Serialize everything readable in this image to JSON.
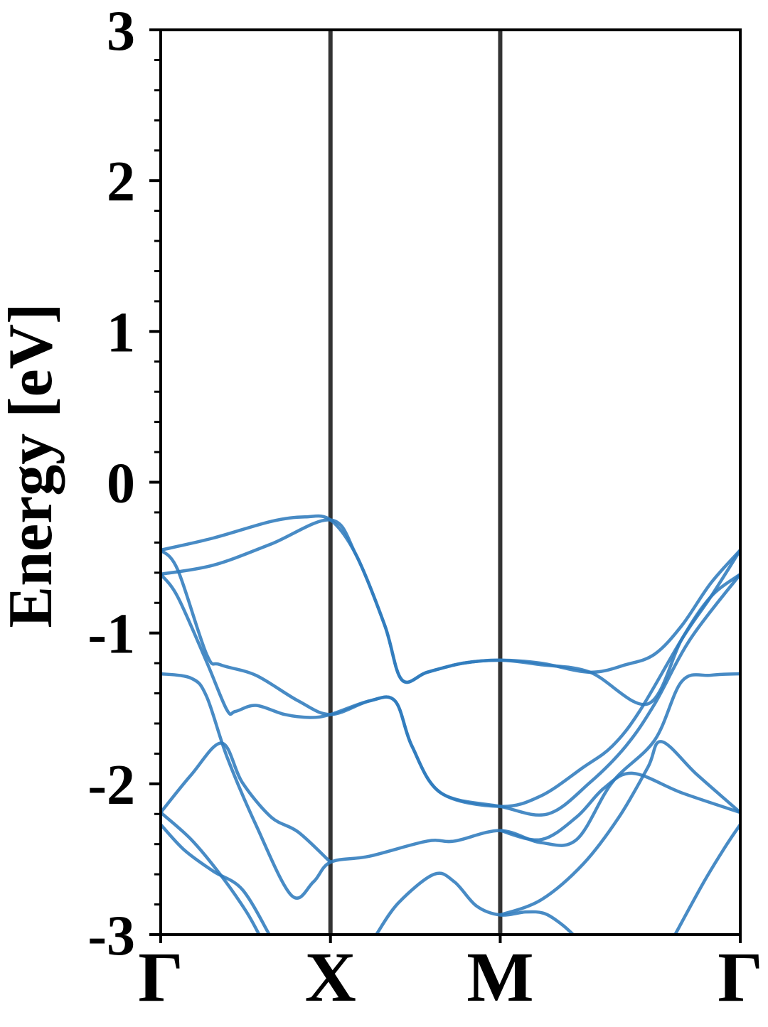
{
  "chart_data": {
    "type": "line",
    "ylabel": "Energy [eV]",
    "xlim": [
      0,
      3.414
    ],
    "xticks": [
      {
        "value": 0,
        "label": "Γ"
      },
      {
        "value": 1,
        "label": "X"
      },
      {
        "value": 2,
        "label": "M"
      },
      {
        "value": 3.414,
        "label": "Γ"
      }
    ],
    "ylim": [
      -3,
      3
    ],
    "yticks": [
      -3,
      -2,
      -1,
      0,
      1,
      2,
      3
    ],
    "yminorticks": [
      -2.8,
      -2.6,
      -2.4,
      -2.2,
      -1.8,
      -1.6,
      -1.4,
      -1.2,
      -0.8,
      -0.6,
      -0.4,
      -0.2,
      0.2,
      0.4,
      0.6,
      0.8,
      1.2,
      1.4,
      1.6,
      1.8,
      2.2,
      2.4,
      2.6,
      2.8
    ],
    "xgrid": true,
    "color": "#2f7bbd",
    "series": [
      {
        "x": [
          0,
          0.31,
          0.65,
          0.85,
          1,
          1.15,
          1.32,
          1.42,
          1.57,
          1.78,
          2,
          2.24,
          2.53,
          2.74,
          2.91,
          3.07,
          3.24,
          3.414
        ],
        "values": [
          -0.45,
          -0.37,
          -0.26,
          -0.23,
          -0.25,
          -0.48,
          -0.95,
          -1.31,
          -1.26,
          -1.2,
          -1.18,
          -1.2,
          -1.26,
          -1.21,
          -1.14,
          -0.95,
          -0.67,
          -0.45
        ]
      },
      {
        "x": [
          0,
          0.31,
          0.65,
          1,
          1.15,
          1.32,
          1.42,
          1.57,
          1.78,
          2,
          2.24,
          2.53,
          2.87,
          3.07,
          3.24,
          3.414
        ],
        "values": [
          -0.61,
          -0.55,
          -0.41,
          -0.25,
          -0.48,
          -0.95,
          -1.31,
          -1.26,
          -1.2,
          -1.18,
          -1.21,
          -1.26,
          -1.47,
          -1.04,
          -0.76,
          -0.61
        ]
      },
      {
        "x": [
          0,
          0.1,
          0.27,
          0.35,
          0.56,
          0.81,
          1,
          1.23,
          1.38,
          1.48,
          1.65,
          2,
          2.24,
          2.49,
          2.66,
          2.82,
          3.07,
          3.24,
          3.414
        ],
        "values": [
          -0.45,
          -0.58,
          -1.14,
          -1.21,
          -1.28,
          -1.45,
          -1.54,
          -1.45,
          -1.45,
          -1.75,
          -2.06,
          -2.15,
          -2.08,
          -1.89,
          -1.75,
          -1.52,
          -1.04,
          -0.76,
          -0.45
        ]
      },
      {
        "x": [
          0,
          0.1,
          0.27,
          0.39,
          0.44,
          0.56,
          0.73,
          0.88,
          1,
          1.23,
          1.38,
          1.48,
          1.65,
          2,
          2.28,
          2.53,
          2.74,
          2.91,
          3.12,
          3.414
        ],
        "values": [
          -0.61,
          -0.76,
          -1.19,
          -1.51,
          -1.52,
          -1.48,
          -1.54,
          -1.56,
          -1.54,
          -1.45,
          -1.45,
          -1.75,
          -2.06,
          -2.15,
          -2.2,
          -1.99,
          -1.75,
          -1.47,
          -1.04,
          -0.61
        ]
      },
      {
        "x": [
          0,
          0.18,
          0.27,
          0.39,
          0.56,
          0.77,
          0.9,
          1,
          1.23,
          1.57,
          1.73,
          2,
          2.24,
          2.45,
          2.66,
          2.91,
          3.07,
          3.24,
          3.414
        ],
        "values": [
          -1.27,
          -1.3,
          -1.42,
          -1.82,
          -2.27,
          -2.74,
          -2.65,
          -2.52,
          -2.48,
          -2.38,
          -2.38,
          -2.31,
          -2.39,
          -2.37,
          -1.99,
          -1.71,
          -1.32,
          -1.28,
          -1.27
        ]
      },
      {
        "x": [
          0,
          0.18,
          0.36,
          0.48,
          0.65,
          0.81,
          1
        ],
        "values": [
          -2.19,
          -1.94,
          -1.73,
          -1.99,
          -2.22,
          -2.32,
          -2.52
        ]
      },
      {
        "x": [
          0,
          0.14,
          0.31,
          0.48,
          0.64
        ],
        "values": [
          -2.27,
          -2.44,
          -2.58,
          -2.7,
          -3
        ]
      },
      {
        "x": [
          0,
          0.18,
          0.35,
          0.5,
          0.58
        ],
        "values": [
          -2.19,
          -2.37,
          -2.6,
          -2.84,
          -3
        ]
      },
      {
        "x": [
          1.27,
          1.4,
          1.61,
          1.73,
          1.86,
          2,
          2.15,
          2.26,
          2.36,
          2.43
        ],
        "values": [
          -3,
          -2.79,
          -2.6,
          -2.65,
          -2.81,
          -2.87,
          -2.85,
          -2.86,
          -2.93,
          -3
        ]
      },
      {
        "x": [
          2,
          2.24,
          2.49,
          2.7,
          2.87,
          2.95,
          3.16,
          3.414
        ],
        "values": [
          -2.87,
          -2.77,
          -2.53,
          -2.22,
          -1.89,
          -1.72,
          -1.94,
          -2.19
        ]
      },
      {
        "x": [
          2,
          2.24,
          2.45,
          2.61,
          2.78,
          3.07,
          3.414
        ],
        "values": [
          -2.31,
          -2.37,
          -2.22,
          -2.03,
          -1.93,
          -2.06,
          -2.19
        ]
      },
      {
        "x": [
          3.03,
          3.2,
          3.33,
          3.414
        ],
        "values": [
          -3,
          -2.65,
          -2.41,
          -2.27
        ]
      }
    ]
  }
}
